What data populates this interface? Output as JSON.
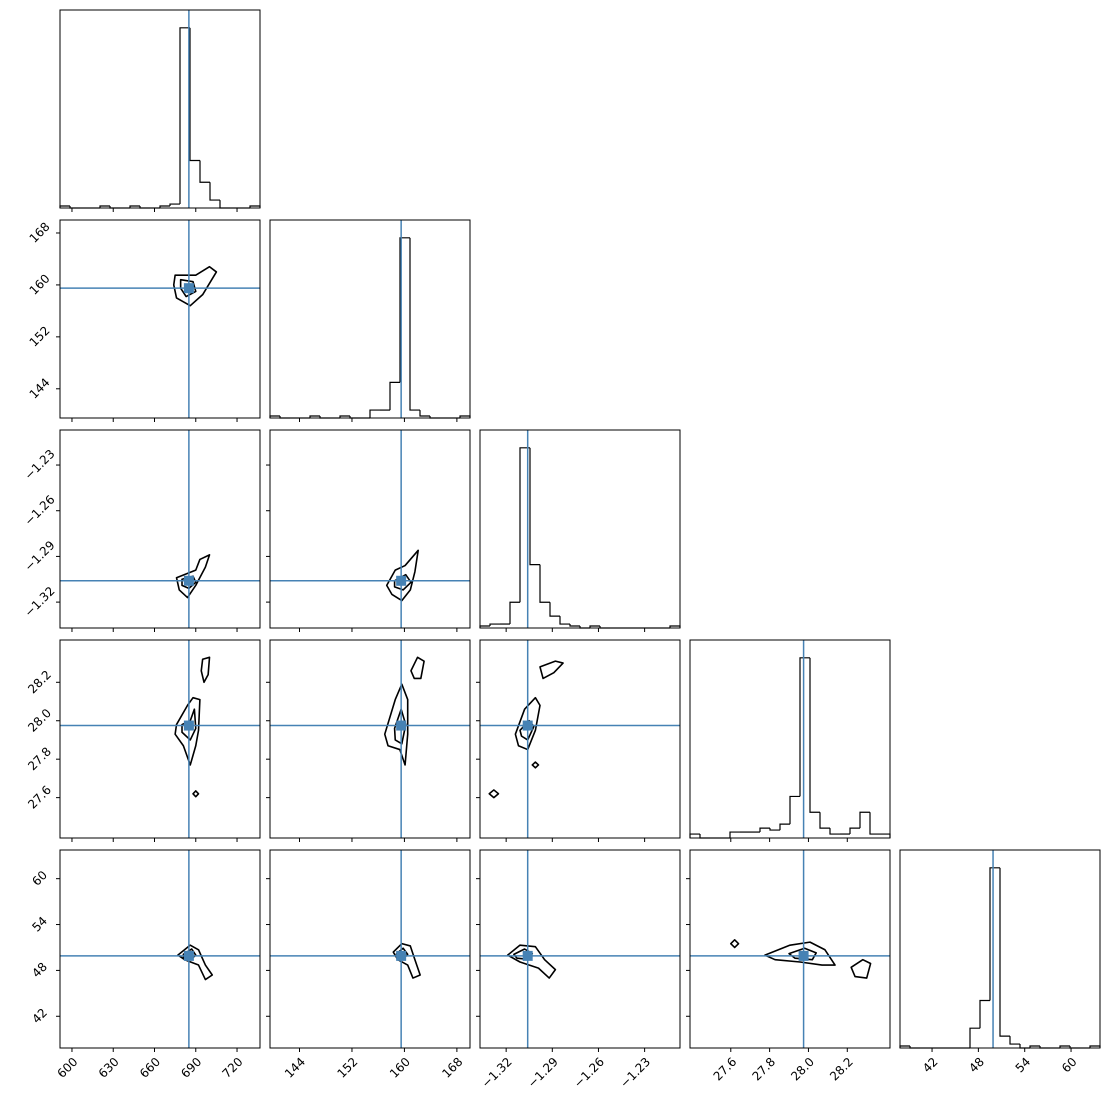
{
  "chart_data": {
    "type": "corner",
    "color": "#000000",
    "truth_color": "#4682b4",
    "hist_ylim": [
      0,
      100
    ],
    "parameters": [
      {
        "lim": [
          591.3,
          736.7
        ],
        "ticks": [
          600,
          630,
          660,
          690,
          720
        ],
        "truth": 685,
        "bins": [
          591.3,
          598.57,
          605.84,
          613.11,
          620.38,
          627.65,
          634.92,
          642.19,
          649.46,
          656.73,
          664.0,
          671.27,
          678.54,
          685.81,
          693.08,
          700.35,
          707.62,
          714.89,
          722.16,
          729.43,
          736.7
        ],
        "counts": [
          1,
          0,
          0,
          0,
          1,
          0,
          0,
          1,
          0,
          0,
          1,
          2,
          91,
          24,
          13,
          4,
          0,
          0,
          0,
          1
        ]
      },
      {
        "lim": [
          139.5,
          170.0
        ],
        "ticks": [
          144,
          152,
          160,
          168
        ],
        "truth": 159.5,
        "bins": [
          139.5,
          141.025,
          142.55,
          144.075,
          145.6,
          147.125,
          148.65,
          150.175,
          151.7,
          153.225,
          154.75,
          156.275,
          157.8,
          159.325,
          160.85,
          162.375,
          163.9,
          165.425,
          166.95,
          168.475,
          170.0
        ],
        "counts": [
          1,
          0,
          0,
          0,
          1,
          0,
          0,
          1,
          0,
          0,
          4,
          4,
          18,
          91,
          4,
          1,
          0,
          0,
          0,
          1
        ]
      },
      {
        "lim": [
          -1.337,
          -1.207
        ],
        "ticks": [
          {
            "value": -1.32,
            "label": "−1.32"
          },
          {
            "value": -1.29,
            "label": "−1.29"
          },
          {
            "value": -1.26,
            "label": "−1.26"
          },
          {
            "value": -1.23,
            "label": "−1.23"
          }
        ],
        "truth": -1.306,
        "bins": [
          -1.337,
          -1.3305,
          -1.324,
          -1.3175,
          -1.311,
          -1.3045,
          -1.298,
          -1.2915,
          -1.285,
          -1.2785,
          -1.272,
          -1.2655,
          -1.259,
          -1.2525,
          -1.246,
          -1.2395,
          -1.233,
          -1.2265,
          -1.22,
          -1.2135,
          -1.207
        ],
        "counts": [
          1,
          2,
          2,
          13,
          91,
          32,
          13,
          6,
          2,
          1,
          0,
          1,
          0,
          0,
          0,
          0,
          0,
          0,
          0,
          1
        ]
      },
      {
        "lim": [
          27.39,
          28.42
        ],
        "ticks": [
          27.6,
          27.8,
          {
            "value": 28,
            "label": "28.0"
          },
          28.2
        ],
        "truth": 27.975,
        "bins": [
          27.39,
          27.4415,
          27.493,
          27.5445,
          27.596,
          27.6475,
          27.699,
          27.7505,
          27.802,
          27.8535,
          27.905,
          27.9565,
          28.008,
          28.0595,
          28.111,
          28.1625,
          28.214,
          28.2655,
          28.317,
          28.3685,
          28.42
        ],
        "counts": [
          2,
          0,
          0,
          0,
          3,
          3,
          3,
          5,
          4,
          7,
          21,
          91,
          13,
          5,
          2,
          2,
          5,
          13,
          2,
          2
        ]
      },
      {
        "lim": [
          37.85,
          63.75
        ],
        "ticks": [
          42,
          48,
          54,
          60
        ],
        "truth": 49.9,
        "bins": [
          37.85,
          39.145,
          40.44,
          41.735,
          43.03,
          44.325,
          45.62,
          46.915,
          48.21,
          49.505,
          50.8,
          52.095,
          53.39,
          54.685,
          55.98,
          57.275,
          58.57,
          59.865,
          61.16,
          62.455,
          63.75
        ],
        "counts": [
          1,
          0,
          0,
          0,
          0,
          0,
          0,
          10,
          24,
          91,
          6,
          2,
          0,
          1,
          0,
          0,
          1,
          0,
          0,
          1
        ]
      }
    ],
    "pairs": [
      {
        "x": 0,
        "y": 1,
        "contours": [
          [
            [
              675,
              161.5
            ],
            [
              690,
              161.5
            ],
            [
              700,
              162.8
            ],
            [
              705,
              162
            ],
            [
              695,
              158.5
            ],
            [
              686,
              156.8
            ],
            [
              676,
              158
            ],
            [
              674,
              160
            ]
          ],
          [
            [
              679,
              160.8
            ],
            [
              688,
              160.5
            ],
            [
              690,
              159
            ],
            [
              683,
              158.2
            ],
            [
              679,
              159.5
            ]
          ]
        ]
      },
      {
        "x": 0,
        "y": 2,
        "contours": [
          [
            [
              676,
              -1.304
            ],
            [
              690,
              -1.299
            ],
            [
              693,
              -1.292
            ],
            [
              700,
              -1.289
            ],
            [
              697,
              -1.297
            ],
            [
              690,
              -1.309
            ],
            [
              684,
              -1.317
            ],
            [
              678,
              -1.312
            ]
          ],
          [
            [
              680,
              -1.305
            ],
            [
              688,
              -1.303
            ],
            [
              690,
              -1.307
            ],
            [
              685,
              -1.311
            ],
            [
              680,
              -1.309
            ]
          ]
        ]
      },
      {
        "x": 1,
        "y": 2,
        "contours": [
          [
            [
              157.3,
              -1.309
            ],
            [
              158.6,
              -1.299
            ],
            [
              160.1,
              -1.296
            ],
            [
              162.1,
              -1.286
            ],
            [
              161.6,
              -1.3
            ],
            [
              160.9,
              -1.312
            ],
            [
              159.6,
              -1.319
            ],
            [
              158.1,
              -1.315
            ]
          ],
          [
            [
              158.5,
              -1.306
            ],
            [
              160.2,
              -1.302
            ],
            [
              161,
              -1.307
            ],
            [
              159.8,
              -1.312
            ],
            [
              158.5,
              -1.31
            ]
          ]
        ]
      },
      {
        "x": 0,
        "y": 3,
        "contours": [
          [
            [
              676,
              27.98
            ],
            [
              684,
              28.08
            ],
            [
              688,
              28.12
            ],
            [
              693,
              28.11
            ],
            [
              692,
              27.95
            ],
            [
              690,
              27.87
            ],
            [
              686,
              27.77
            ],
            [
              681,
              27.87
            ],
            [
              675,
              27.93
            ]
          ],
          [
            [
              680,
              27.98
            ],
            [
              686,
              28.0
            ],
            [
              689,
              28.06
            ],
            [
              690,
              27.96
            ],
            [
              686,
              27.9
            ],
            [
              680,
              27.94
            ]
          ],
          [
            [
              695,
              28.32
            ],
            [
              700,
              28.33
            ],
            [
              699,
              28.24
            ],
            [
              696,
              28.2
            ],
            [
              694,
              28.26
            ]
          ],
          [
            [
              688,
              27.62
            ],
            [
              690,
              27.635
            ],
            [
              692,
              27.62
            ],
            [
              690,
              27.605
            ]
          ]
        ]
      },
      {
        "x": 1,
        "y": 3,
        "contours": [
          [
            [
              157,
              27.93
            ],
            [
              158.6,
              28.11
            ],
            [
              159.6,
              28.19
            ],
            [
              160.5,
              28.11
            ],
            [
              160.5,
              27.93
            ],
            [
              160.1,
              27.77
            ],
            [
              159.3,
              27.85
            ],
            [
              157.5,
              27.87
            ]
          ],
          [
            [
              158.5,
              27.96
            ],
            [
              159.5,
              28.06
            ],
            [
              160.2,
              27.98
            ],
            [
              159.6,
              27.88
            ],
            [
              158.6,
              27.9
            ]
          ],
          [
            [
              161,
              28.26
            ],
            [
              162,
              28.33
            ],
            [
              163,
              28.31
            ],
            [
              162.5,
              28.22
            ],
            [
              161.5,
              28.22
            ]
          ]
        ]
      },
      {
        "x": 2,
        "y": 3,
        "contours": [
          [
            [
              -1.314,
              27.93
            ],
            [
              -1.308,
              28.06
            ],
            [
              -1.301,
              28.12
            ],
            [
              -1.298,
              28.08
            ],
            [
              -1.301,
              27.95
            ],
            [
              -1.306,
              27.85
            ],
            [
              -1.312,
              27.87
            ]
          ],
          [
            [
              -1.311,
              27.95
            ],
            [
              -1.305,
              28.0
            ],
            [
              -1.302,
              27.97
            ],
            [
              -1.306,
              27.9
            ],
            [
              -1.31,
              27.92
            ]
          ],
          [
            [
              -1.298,
              28.28
            ],
            [
              -1.288,
              28.31
            ],
            [
              -1.283,
              28.3
            ],
            [
              -1.289,
              28.25
            ],
            [
              -1.296,
              28.22
            ]
          ],
          [
            [
              -1.303,
              27.77
            ],
            [
              -1.301,
              27.785
            ],
            [
              -1.299,
              27.77
            ],
            [
              -1.301,
              27.755
            ]
          ],
          [
            [
              -1.331,
              27.62
            ],
            [
              -1.328,
              27.64
            ],
            [
              -1.325,
              27.62
            ],
            [
              -1.328,
              27.6
            ]
          ]
        ]
      },
      {
        "x": 0,
        "y": 4,
        "contours": [
          [
            [
              677,
              50.0
            ],
            [
              686,
              51.3
            ],
            [
              692,
              50.7
            ],
            [
              697,
              48.7
            ],
            [
              702,
              47.4
            ],
            [
              697,
              46.8
            ],
            [
              692,
              48.7
            ],
            [
              682,
              49.4
            ]
          ],
          [
            [
              681,
              50.1
            ],
            [
              687,
              50.8
            ],
            [
              690,
              50.0
            ],
            [
              686,
              49.4
            ],
            [
              681,
              49.6
            ]
          ]
        ]
      },
      {
        "x": 1,
        "y": 4,
        "contours": [
          [
            [
              158.3,
              50.4
            ],
            [
              159.6,
              51.5
            ],
            [
              160.9,
              51.2
            ],
            [
              161.6,
              49.4
            ],
            [
              162.4,
              47.4
            ],
            [
              161.3,
              47.0
            ],
            [
              160.5,
              48.7
            ],
            [
              159.0,
              49.4
            ]
          ],
          [
            [
              158.8,
              50.2
            ],
            [
              159.8,
              50.9
            ],
            [
              160.5,
              50.1
            ],
            [
              159.8,
              49.5
            ],
            [
              159,
              49.6
            ]
          ]
        ]
      },
      {
        "x": 2,
        "y": 4,
        "contours": [
          [
            [
              -1.319,
              50.0
            ],
            [
              -1.311,
              51.3
            ],
            [
              -1.301,
              51.1
            ],
            [
              -1.295,
              49.4
            ],
            [
              -1.288,
              48.1
            ],
            [
              -1.292,
              47.0
            ],
            [
              -1.299,
              48.3
            ],
            [
              -1.311,
              49.1
            ]
          ],
          [
            [
              -1.315,
              50.1
            ],
            [
              -1.308,
              50.8
            ],
            [
              -1.303,
              50.2
            ],
            [
              -1.308,
              49.5
            ],
            [
              -1.313,
              49.6
            ]
          ]
        ]
      },
      {
        "x": 3,
        "y": 4,
        "contours": [
          [
            [
              27.776,
              50.0
            ],
            [
              27.905,
              51.3
            ],
            [
              28.008,
              51.7
            ],
            [
              28.085,
              50.7
            ],
            [
              28.137,
              48.7
            ],
            [
              28.07,
              48.7
            ],
            [
              27.957,
              49.1
            ],
            [
              27.828,
              49.4
            ]
          ],
          [
            [
              27.9,
              50.2
            ],
            [
              27.98,
              50.9
            ],
            [
              28.04,
              50.3
            ],
            [
              28.02,
              49.4
            ],
            [
              27.93,
              49.6
            ]
          ],
          [
            [
              28.22,
              48.4
            ],
            [
              28.28,
              49.4
            ],
            [
              28.32,
              48.9
            ],
            [
              28.3,
              47.0
            ],
            [
              28.24,
              47.2
            ]
          ],
          [
            [
              27.6,
              51.5
            ],
            [
              27.62,
              52.0
            ],
            [
              27.64,
              51.5
            ],
            [
              27.62,
              51.0
            ]
          ]
        ]
      }
    ]
  }
}
